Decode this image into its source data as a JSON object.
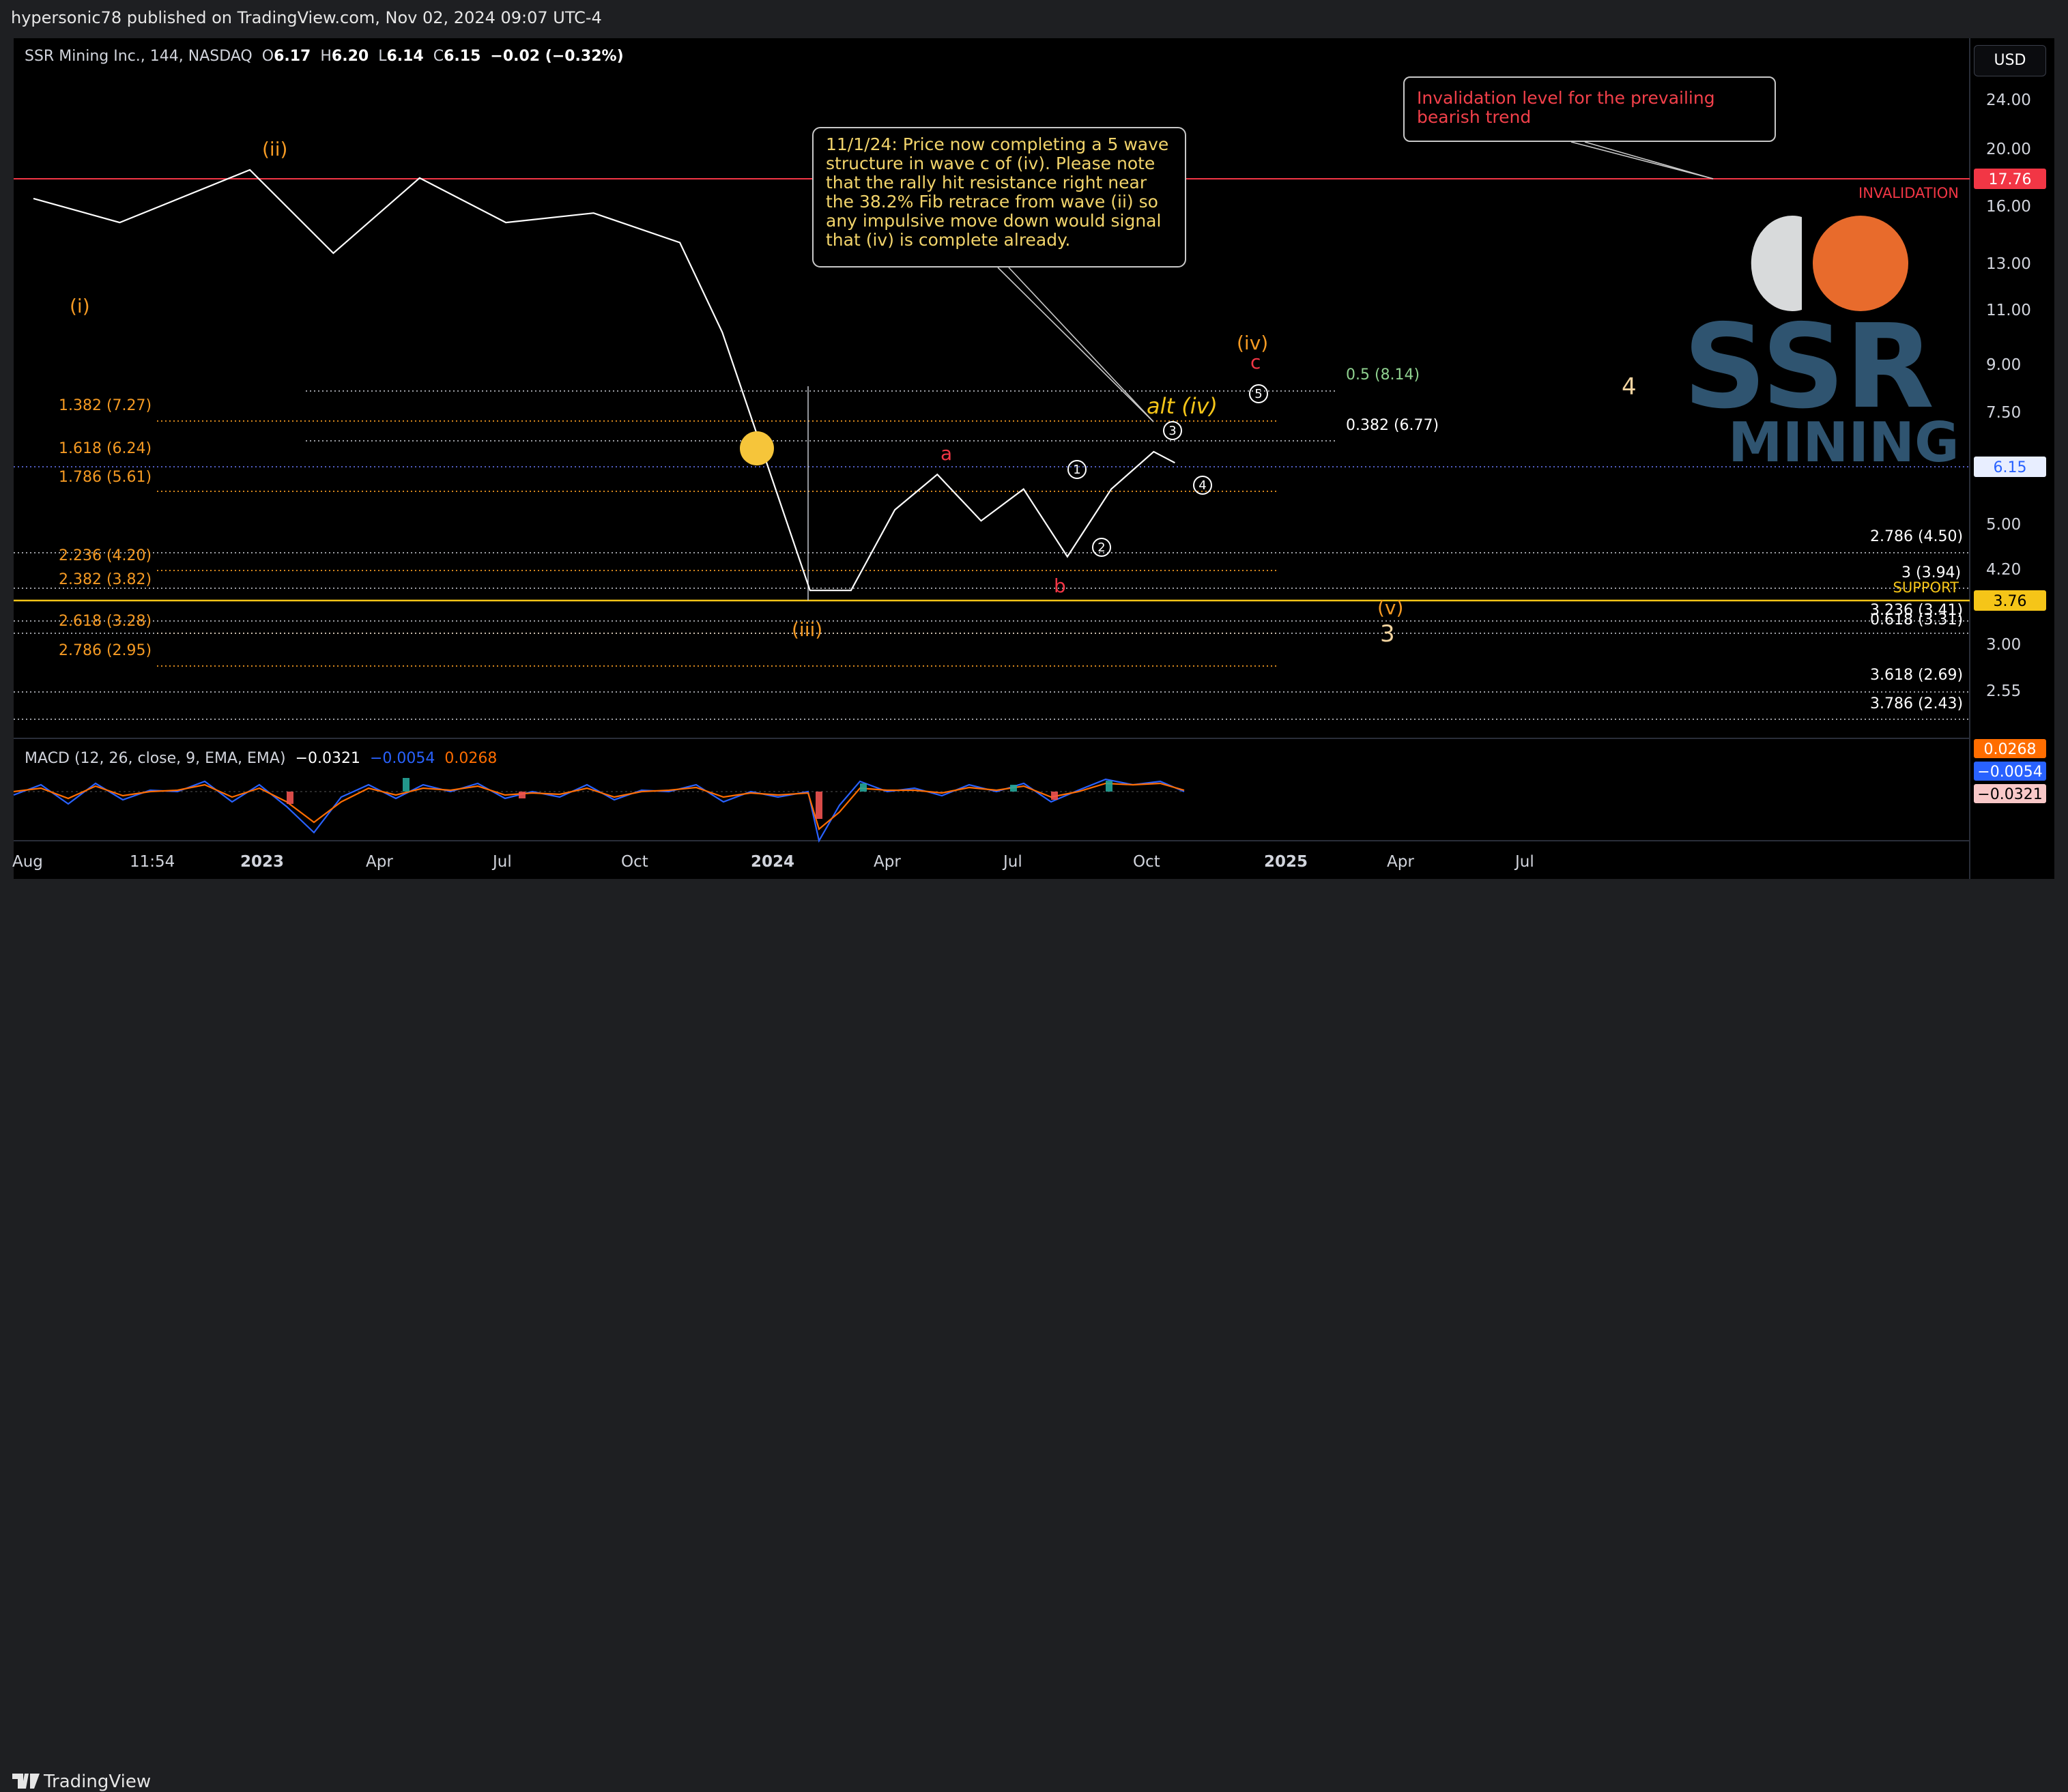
{
  "header": {
    "published": "hypersonic78 published on TradingView.com, Nov 02, 2024 09:07 UTC-4"
  },
  "footer": {
    "logo_text": "TradingView"
  },
  "symbol_bar": {
    "name": "SSR Mining Inc., 144, NASDAQ",
    "o_label": "O",
    "o": "6.17",
    "h_label": "H",
    "h": "6.20",
    "l_label": "L",
    "l": "6.14",
    "c_label": "C",
    "c": "6.15",
    "change": "−0.02 (−0.32%)"
  },
  "currency": "USD",
  "macd": {
    "label": "MACD (12, 26, close, 9, EMA, EMA)",
    "v1": "−0.0321",
    "v2": "−0.0054",
    "v3": "0.0268",
    "badges": [
      "0.0268",
      "−0.0054",
      "−0.0321"
    ]
  },
  "colors": {
    "orange": "#f59a23",
    "red": "#f23645",
    "yellow": "#f5c518",
    "blue": "#2962ff",
    "white": "#ffffff",
    "green": "#26a69a"
  },
  "chart_data": {
    "type": "line",
    "price_scale": "log",
    "y_ticks": [
      "24.00",
      "20.00",
      "16.00",
      "13.00",
      "11.00",
      "9.00",
      "7.50",
      "6.15",
      "5.00",
      "4.20",
      "3.76",
      "3.00",
      "2.55"
    ],
    "x_ticks": [
      "Aug",
      "11:54",
      "2023",
      "Apr",
      "Jul",
      "Oct",
      "2024",
      "Apr",
      "Jul",
      "Oct",
      "2025",
      "Apr",
      "Jul"
    ],
    "series": [
      {
        "values_description_free": true,
        "x": [
          "2022-08",
          "2022-10",
          "2023-01",
          "2023-03",
          "2023-05",
          "2023-07",
          "2023-09",
          "2023-11",
          "2023-12",
          "2024-02",
          "2024-03",
          "2024-04",
          "2024-05",
          "2024-06",
          "2024-07",
          "2024-08",
          "2024-09",
          "2024-10",
          "2024-10-30"
        ],
        "y": [
          15.8,
          14.5,
          17.5,
          13.0,
          17.0,
          14.5,
          15.0,
          13.5,
          9.8,
          3.9,
          3.9,
          5.2,
          5.9,
          5.0,
          5.6,
          4.4,
          5.6,
          6.4,
          6.15
        ]
      }
    ],
    "price_badges": [
      {
        "value": "17.76",
        "color": "#f23645"
      },
      {
        "value": "6.15",
        "color": "#2962ff"
      },
      {
        "value": "3.76",
        "color": "#f5c518"
      }
    ],
    "horizontal_levels": [
      {
        "label": "INVALIDATION",
        "value": 17.76
      },
      {
        "label": "SUPPORT",
        "value": 3.76
      }
    ],
    "fib_left": [
      {
        "label": "1.382 (7.27)"
      },
      {
        "label": "1.618 (6.24)"
      },
      {
        "label": "1.786 (5.61)"
      },
      {
        "label": "2.236 (4.20)"
      },
      {
        "label": "2.382 (3.82)"
      },
      {
        "label": "2.618 (3.28)"
      },
      {
        "label": "2.786 (2.95)"
      }
    ],
    "fib_right": [
      {
        "label": "0.5 (8.14)"
      },
      {
        "label": "0.382 (6.77)"
      },
      {
        "label": "2.786 (4.50)"
      },
      {
        "label": "3 (3.94)"
      },
      {
        "label": "3.236 (3.41)"
      },
      {
        "label": "0.618 (3.31)"
      },
      {
        "label": "3.618 (2.69)"
      },
      {
        "label": "3.786 (2.43)"
      }
    ],
    "wave_labels": [
      "(i)",
      "(ii)",
      "(iii)",
      "(iv)",
      "c",
      "(v)",
      "3",
      "4",
      "a",
      "b",
      "alt (iv)",
      "1",
      "2",
      "3",
      "4",
      "5"
    ]
  },
  "notes": {
    "note1": "11/1/24:  Price now completing a 5 wave structure in wave c of (iv). Please note that the rally hit resistance right near the 38.2% Fib retrace from wave (ii) so any impulsive move down would signal that (iv) is complete already.",
    "note2": "Invalidation level for the prevailing bearish trend"
  },
  "logo": {
    "line1": "SSR",
    "line2": "MINING"
  }
}
